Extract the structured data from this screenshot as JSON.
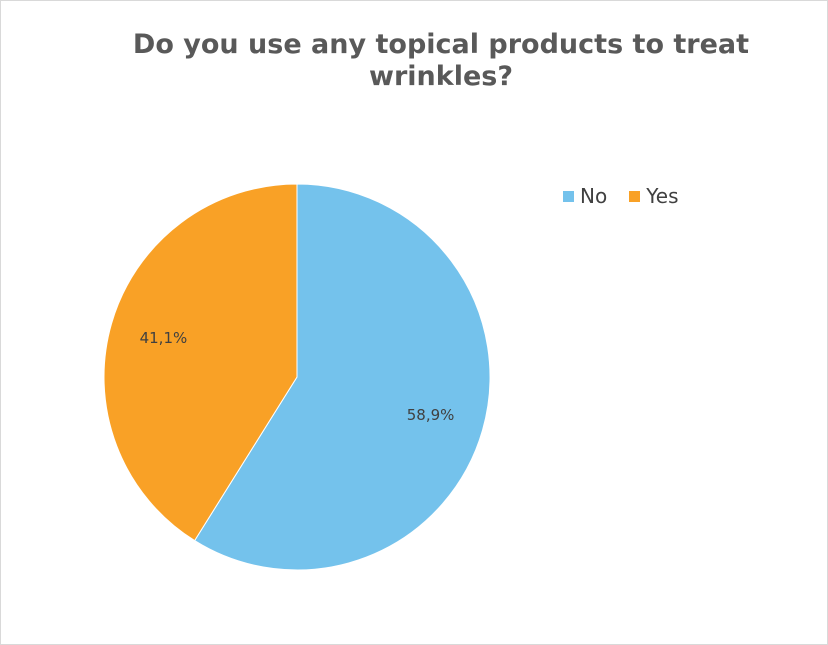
{
  "chart_data": {
    "type": "pie",
    "title": "Do you use any topical products to treat wrinkles?",
    "categories": [
      "No",
      "Yes"
    ],
    "values": [
      58.9,
      41.1
    ],
    "data_labels": [
      "58,9%",
      "41,1%"
    ],
    "colors": [
      "#74C2EC",
      "#F9A126"
    ],
    "legend_position": "top-right",
    "start_angle_deg": 0,
    "direction": "clockwise"
  }
}
